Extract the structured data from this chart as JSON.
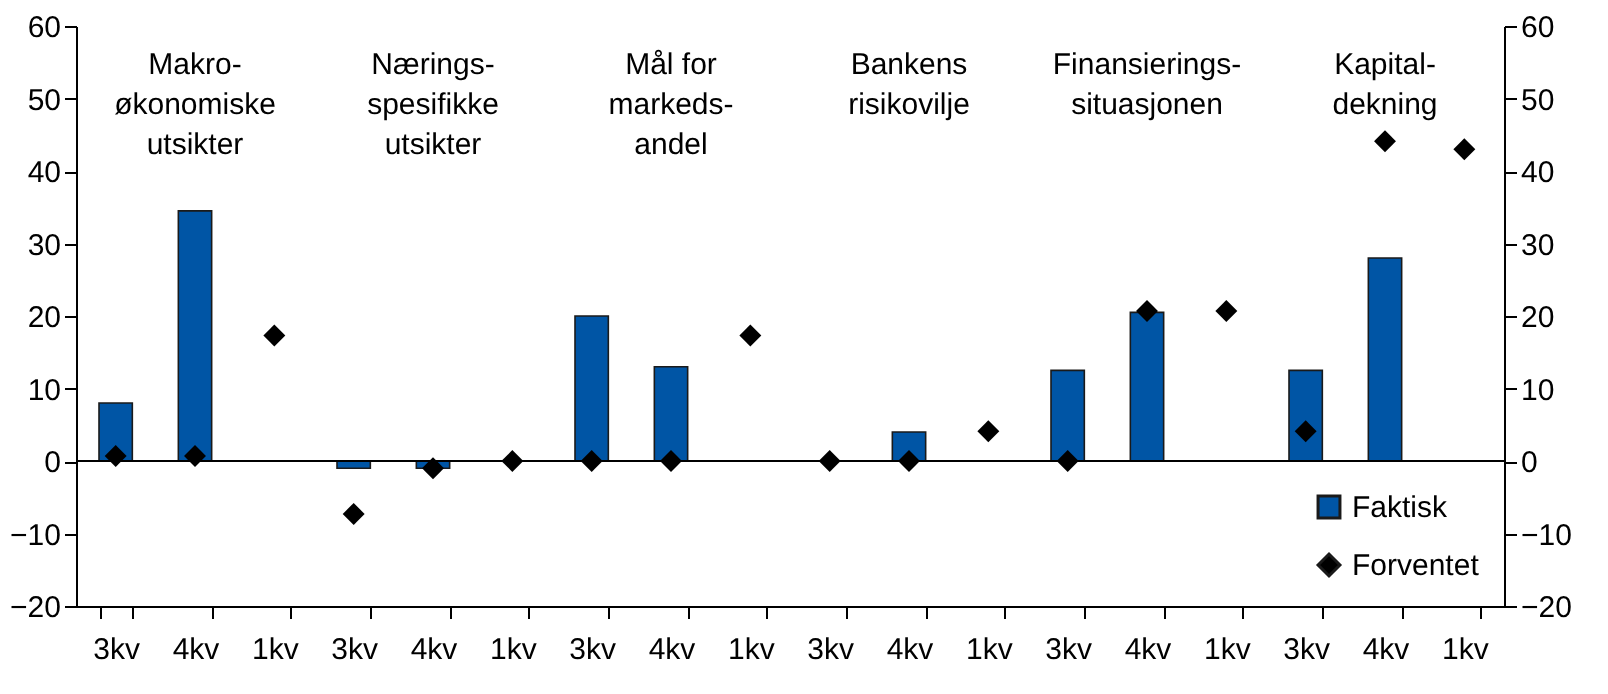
{
  "chart_data": {
    "type": "bar",
    "categories": [
      "3kv",
      "4kv",
      "1kv",
      "3kv",
      "4kv",
      "1kv",
      "3kv",
      "4kv",
      "1kv",
      "3kv",
      "4kv",
      "1kv",
      "3kv",
      "4kv",
      "1kv",
      "3kv",
      "4kv",
      "1kv"
    ],
    "series": [
      {
        "name": "Faktisk",
        "color": "#0055a5",
        "values": [
          8,
          34.5,
          null,
          -1,
          -1,
          null,
          20,
          13,
          null,
          null,
          4,
          null,
          12.5,
          20.5,
          null,
          12.5,
          28,
          null
        ]
      },
      {
        "name": "Forventet",
        "type": "scatter",
        "color": "#000000",
        "values": [
          0.7,
          0.7,
          17.3,
          -7.3,
          -1,
          0,
          0,
          0,
          17.3,
          0,
          0,
          4.1,
          0,
          20.7,
          20.7,
          4.1,
          44.1,
          43
        ]
      }
    ],
    "annotations": [
      "Makro-\nøkonomiske\nutsikter",
      "Nærings-\nspesifikke\nutsikter",
      "Mål for\nmarkeds-\nandel",
      "Bankens\nrisikovilje",
      "Finansierings-\nsituasjonen",
      "Kapital-\ndekning"
    ],
    "ylim": [
      -20,
      60
    ],
    "yticks": [
      -20,
      -10,
      0,
      10,
      20,
      30,
      40,
      50,
      60
    ],
    "y2lim": [
      -20,
      60
    ],
    "y2ticks": [
      -20,
      -10,
      0,
      10,
      20,
      30,
      40,
      50,
      60
    ],
    "ref_lines": [
      {
        "axis": "y",
        "value": 0,
        "color": "#000000"
      }
    ],
    "grid": false,
    "legend": "bottom right",
    "marker": "diamond"
  }
}
